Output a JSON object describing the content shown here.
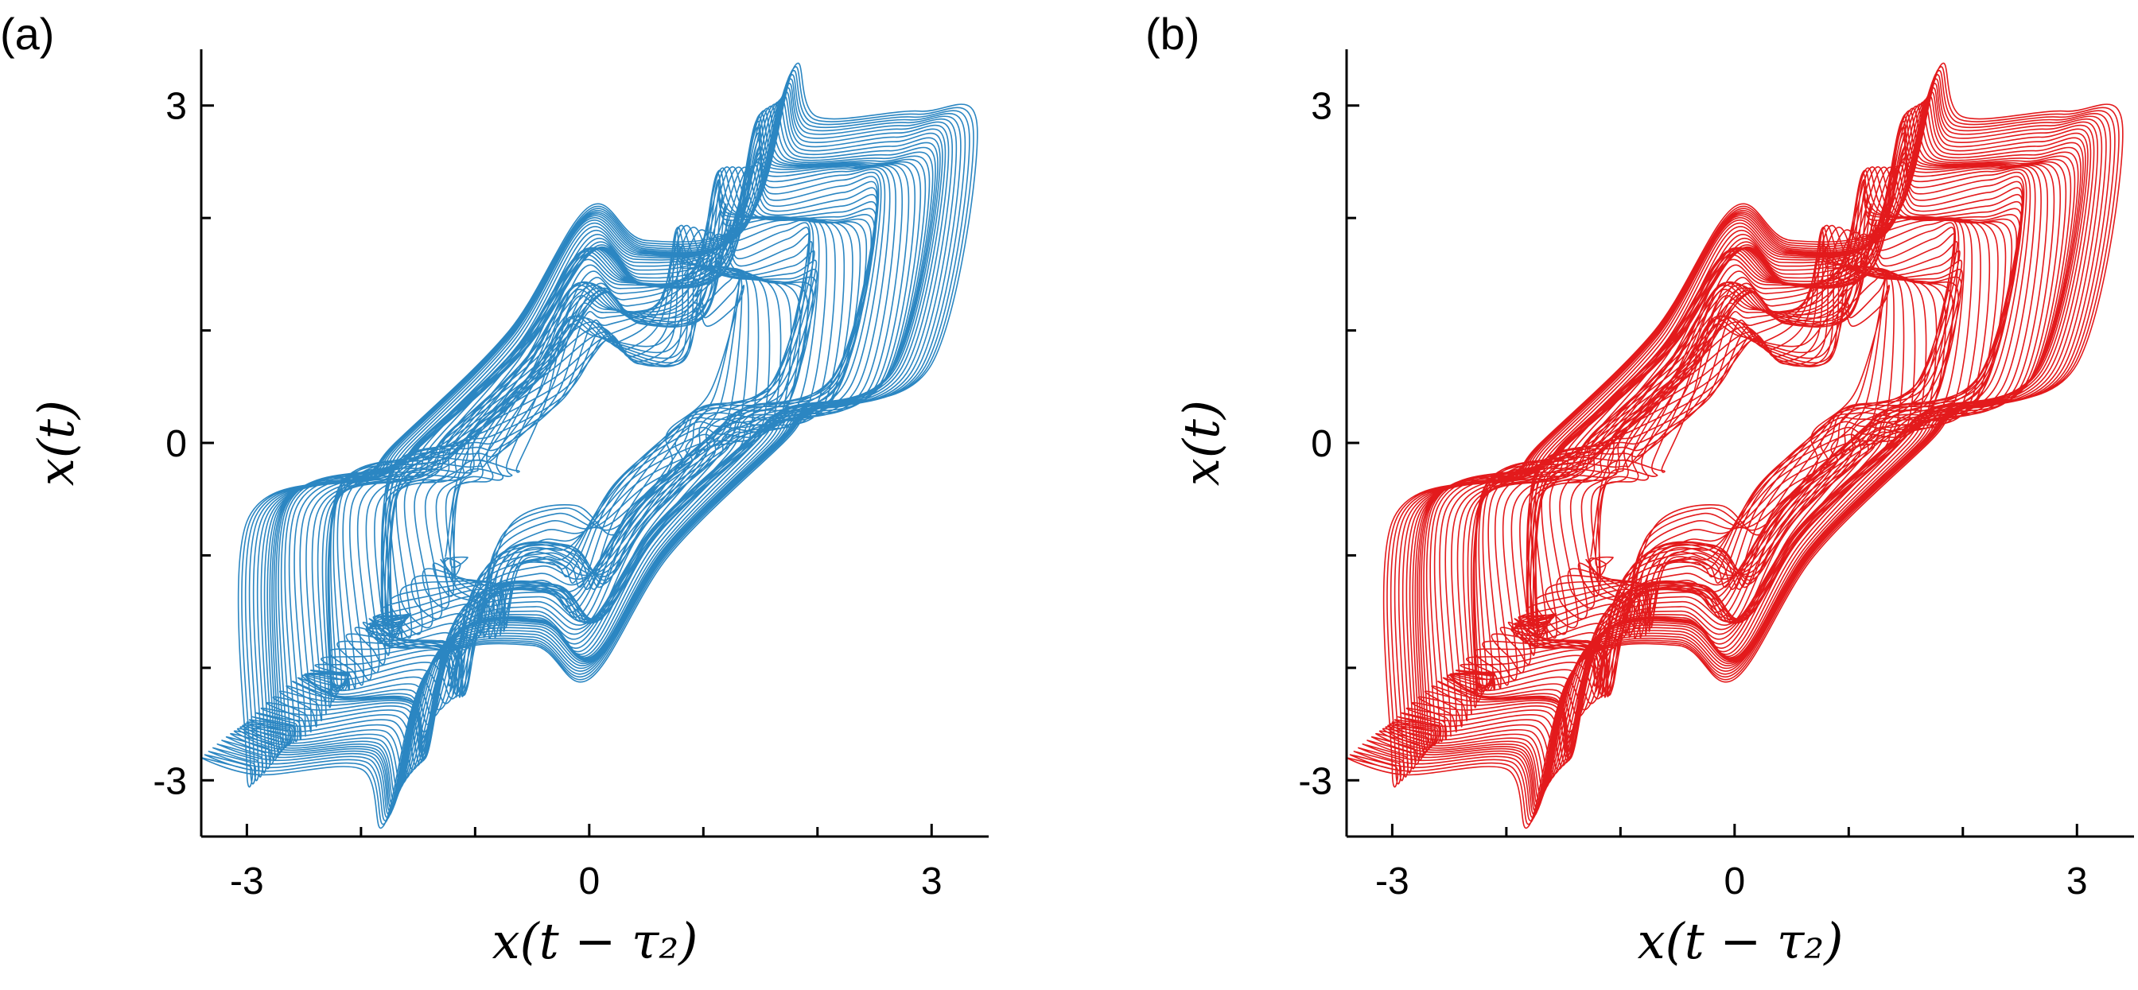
{
  "chart_data": [
    {
      "type": "line",
      "panel_label": "(a)",
      "title": "",
      "xlabel": "x(t − τ₂)",
      "ylabel": "x(t)",
      "xlim": [
        -3.4,
        3.5
      ],
      "ylim": [
        -3.5,
        3.5
      ],
      "xticks": [
        -3,
        0,
        3
      ],
      "yticks": [
        -3,
        0,
        3
      ],
      "xtick_labels": [
        "-3",
        "0",
        "3"
      ],
      "ytick_labels": [
        "-3",
        "0",
        "3"
      ],
      "grid": false,
      "color": "#2b86c2",
      "series": [
        {
          "description_points": [
            [
              -3.0,
              -2.9
            ],
            [
              -3.0,
              -0.7
            ],
            [
              -2.0,
              -0.3
            ],
            [
              -1.7,
              0.0
            ],
            [
              -0.7,
              1.0
            ],
            [
              0.0,
              2.1
            ],
            [
              0.5,
              1.8
            ],
            [
              1.4,
              2.0
            ],
            [
              1.8,
              3.35
            ],
            [
              2.0,
              2.9
            ],
            [
              2.9,
              2.95
            ],
            [
              3.4,
              2.8
            ],
            [
              3.0,
              0.7
            ],
            [
              2.0,
              0.3
            ],
            [
              1.7,
              0.0
            ],
            [
              0.7,
              -1.0
            ],
            [
              0.0,
              -2.1
            ],
            [
              -0.5,
              -1.8
            ],
            [
              -1.4,
              -2.0
            ],
            [
              -1.8,
              -3.4
            ],
            [
              -2.0,
              -2.9
            ],
            [
              -2.9,
              -2.95
            ],
            [
              -3.4,
              -2.8
            ]
          ]
        }
      ]
    },
    {
      "type": "line",
      "panel_label": "(b)",
      "title": "",
      "xlabel": "x(t − τ₂)",
      "ylabel": "x(t)",
      "xlim": [
        -3.4,
        3.5
      ],
      "ylim": [
        -3.5,
        3.5
      ],
      "xticks": [
        -3,
        0,
        3
      ],
      "yticks": [
        -3,
        0,
        3
      ],
      "xtick_labels": [
        "-3",
        "0",
        "3"
      ],
      "ytick_labels": [
        "-3",
        "0",
        "3"
      ],
      "grid": false,
      "color": "#e31a1c",
      "series": [
        {
          "description_points": [
            [
              -3.0,
              -2.9
            ],
            [
              -3.0,
              -0.7
            ],
            [
              -2.0,
              -0.3
            ],
            [
              -1.7,
              0.0
            ],
            [
              -0.7,
              1.0
            ],
            [
              0.0,
              2.1
            ],
            [
              0.5,
              1.8
            ],
            [
              1.4,
              2.0
            ],
            [
              1.8,
              3.35
            ],
            [
              2.0,
              2.9
            ],
            [
              2.9,
              2.95
            ],
            [
              3.4,
              2.8
            ],
            [
              3.0,
              0.7
            ],
            [
              2.0,
              0.3
            ],
            [
              1.7,
              0.0
            ],
            [
              0.7,
              -1.0
            ],
            [
              0.0,
              -2.1
            ],
            [
              -0.5,
              -1.8
            ],
            [
              -1.4,
              -2.0
            ],
            [
              -1.8,
              -3.4
            ],
            [
              -2.0,
              -2.9
            ],
            [
              -2.9,
              -2.95
            ],
            [
              -3.4,
              -2.8
            ]
          ]
        }
      ]
    }
  ]
}
